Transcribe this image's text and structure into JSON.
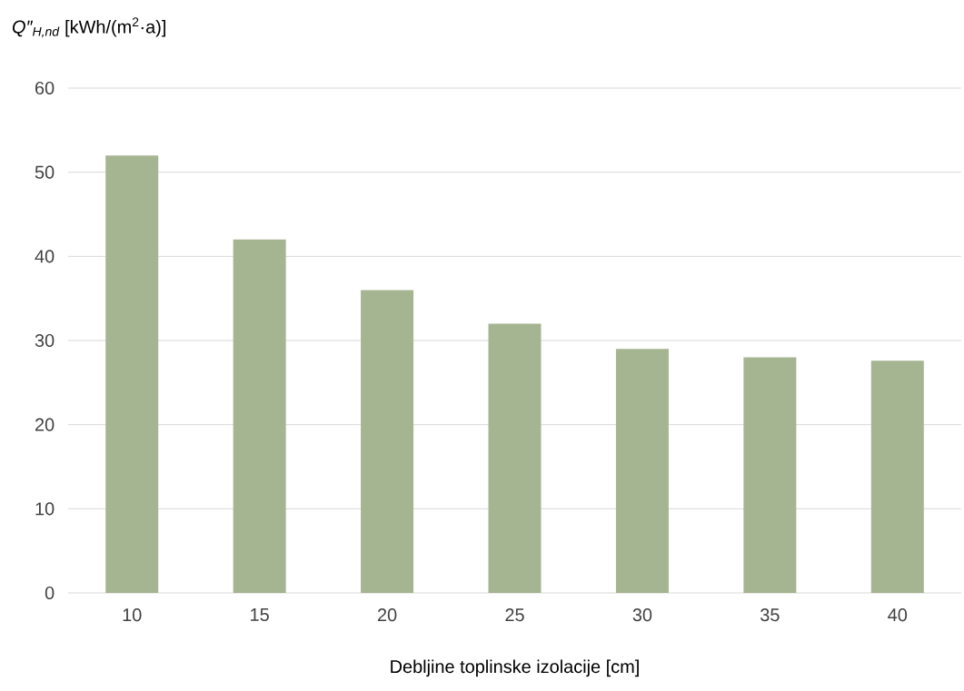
{
  "chart_data": {
    "type": "bar",
    "ylabel": "*Q″$_{H,nd}$* [kWh/(m$^{2}$·a)]",
    "xlabel": "Debljine toplinske izolacije [cm]",
    "categories": [
      "10",
      "15",
      "20",
      "25",
      "30",
      "35",
      "40"
    ],
    "values": [
      52,
      42,
      36,
      32,
      29,
      28,
      27.6
    ],
    "color": "#a6b591",
    "ylim": [
      0,
      60
    ],
    "yticks": [
      0,
      10,
      20,
      30,
      40,
      50,
      60
    ],
    "grid": "y"
  }
}
